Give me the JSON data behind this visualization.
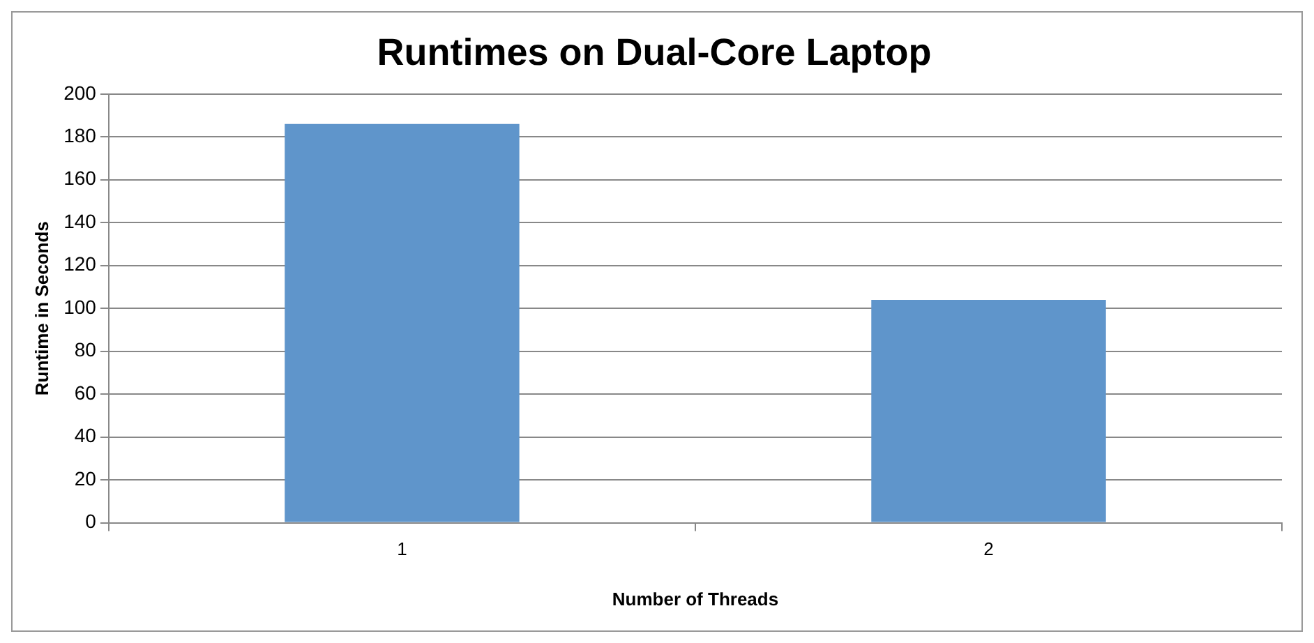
{
  "chart_data": {
    "type": "bar",
    "title": "Runtimes on Dual-Core Laptop",
    "xlabel": "Number of Threads",
    "ylabel": "Runtime in Seconds",
    "categories": [
      "1",
      "2"
    ],
    "values": [
      186,
      104
    ],
    "color": "#5f95cb",
    "ylim": [
      0,
      200
    ],
    "yticks": [
      0,
      20,
      40,
      60,
      80,
      100,
      120,
      140,
      160,
      180,
      200
    ],
    "grid": "y",
    "legend": false
  }
}
